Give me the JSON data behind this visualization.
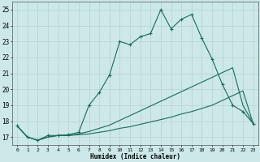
{
  "xlabel": "Humidex (Indice chaleur)",
  "xlim": [
    -0.5,
    23.5
  ],
  "ylim": [
    16.5,
    25.5
  ],
  "yticks": [
    17,
    18,
    19,
    20,
    21,
    22,
    23,
    24,
    25
  ],
  "xticks": [
    0,
    1,
    2,
    3,
    4,
    5,
    6,
    7,
    8,
    9,
    10,
    11,
    12,
    13,
    14,
    15,
    16,
    17,
    18,
    19,
    20,
    21,
    22,
    23
  ],
  "background_color": "#cce8e8",
  "grid_color": "#b8d0d0",
  "line_color": "#1a6b5a",
  "series": [
    {
      "x": [
        0,
        1,
        2,
        3,
        4,
        5,
        6,
        7,
        8,
        9,
        10,
        11,
        12,
        13,
        14,
        15,
        16,
        17,
        18,
        19,
        20,
        21,
        22,
        23
      ],
      "y": [
        17.7,
        17.0,
        16.8,
        17.0,
        17.1,
        17.1,
        17.15,
        17.2,
        17.3,
        17.4,
        17.55,
        17.65,
        17.8,
        17.95,
        18.1,
        18.25,
        18.45,
        18.6,
        18.8,
        19.0,
        19.3,
        19.6,
        19.9,
        17.85
      ],
      "marker": null,
      "linestyle": "-",
      "linewidth": 0.8
    },
    {
      "x": [
        0,
        1,
        2,
        3,
        4,
        5,
        6,
        7,
        8,
        9,
        10,
        11,
        12,
        13,
        14,
        15,
        16,
        17,
        18,
        19,
        20,
        21,
        22,
        23
      ],
      "y": [
        17.7,
        17.0,
        16.8,
        17.0,
        17.1,
        17.1,
        17.2,
        17.35,
        17.55,
        17.75,
        18.05,
        18.35,
        18.65,
        18.95,
        19.25,
        19.55,
        19.85,
        20.15,
        20.45,
        20.75,
        21.05,
        21.35,
        19.0,
        17.85
      ],
      "marker": null,
      "linestyle": "-",
      "linewidth": 0.8
    },
    {
      "x": [
        0,
        1,
        2,
        3,
        4,
        5,
        6,
        7,
        8,
        9,
        10,
        11,
        12,
        13,
        14,
        15,
        16,
        17,
        18,
        19,
        20,
        21,
        22,
        23
      ],
      "y": [
        17.7,
        17.0,
        16.8,
        17.1,
        17.1,
        17.15,
        17.3,
        19.0,
        19.8,
        20.9,
        23.0,
        22.8,
        23.3,
        23.5,
        25.0,
        23.8,
        24.4,
        24.7,
        23.2,
        21.9,
        20.3,
        19.0,
        18.6,
        17.85
      ],
      "marker": "+",
      "linestyle": "-",
      "linewidth": 0.8
    }
  ]
}
